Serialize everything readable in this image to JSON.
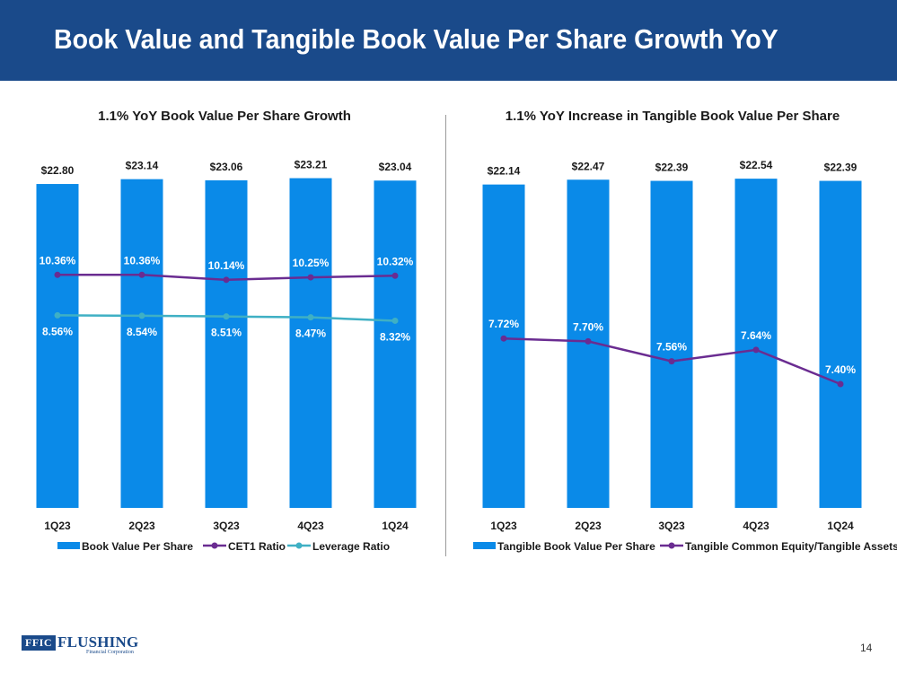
{
  "slide": {
    "title": "Book Value and Tangible Book Value Per Share Growth YoY",
    "page_number": "14"
  },
  "logo": {
    "mark": "FFIC",
    "name": "FLUSHING",
    "subtitle": "Financial Corporation"
  },
  "colors": {
    "header": "#1a4a8a",
    "bar": "#0a8ae8",
    "purple": "#6a2c91",
    "teal": "#3fb0c4"
  },
  "chart_data": [
    {
      "type": "bar",
      "title": "1.1% YoY Book Value Per Share Growth",
      "categories": [
        "1Q23",
        "2Q23",
        "3Q23",
        "4Q23",
        "1Q24"
      ],
      "bar_series": {
        "name": "Book Value Per Share",
        "values": [
          22.8,
          23.14,
          23.06,
          23.21,
          23.04
        ],
        "labels": [
          "$22.80",
          "$23.14",
          "$23.06",
          "$23.21",
          "$23.04"
        ]
      },
      "line_series": [
        {
          "name": "CET1 Ratio",
          "values": [
            10.36,
            10.36,
            10.14,
            10.25,
            10.32
          ],
          "labels": [
            "10.36%",
            "10.36%",
            "10.14%",
            "10.25%",
            "10.32%"
          ],
          "ylim": [
            0,
            15
          ],
          "label_position": "above"
        },
        {
          "name": "Leverage Ratio",
          "values": [
            8.56,
            8.54,
            8.51,
            8.47,
            8.32
          ],
          "labels": [
            "8.56%",
            "8.54%",
            "8.51%",
            "8.47%",
            "8.32%"
          ],
          "ylim": [
            0,
            15
          ],
          "label_position": "below"
        }
      ],
      "ylim": [
        0,
        23.75
      ],
      "legend": "bottom"
    },
    {
      "type": "bar",
      "title": "1.1% YoY Increase in Tangible Book Value Per Share",
      "categories": [
        "1Q23",
        "2Q23",
        "3Q23",
        "4Q23",
        "1Q24"
      ],
      "bar_series": {
        "name": "Tangible Book Value Per Share",
        "values": [
          22.14,
          22.47,
          22.39,
          22.54,
          22.39
        ],
        "labels": [
          "$22.14",
          "$22.47",
          "$22.39",
          "$22.54",
          "$22.39"
        ]
      },
      "line_series": [
        {
          "name": "Tangible Common Equity/Tangible Assets",
          "values": [
            7.72,
            7.7,
            7.56,
            7.64,
            7.4
          ],
          "labels": [
            "7.72%",
            "7.70%",
            "7.56%",
            "7.64%",
            "7.40%"
          ],
          "ylim": [
            6.53,
            8.9
          ],
          "label_position": "above"
        }
      ],
      "ylim": [
        0,
        23.1
      ],
      "legend": "bottom"
    }
  ]
}
